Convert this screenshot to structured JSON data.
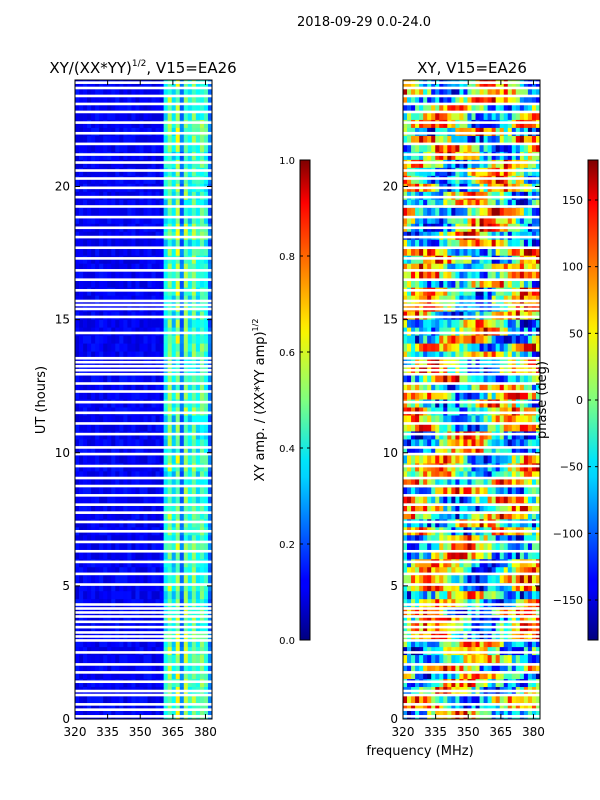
{
  "figure": {
    "suptitle": "2018-09-29 0.0-24.0",
    "xlabel": "frequency (MHz)"
  },
  "chart_data": [
    {
      "type": "heatmap",
      "title_main": "XY/(XX*YY)",
      "title_sup": "1/2",
      "title_tail": ", V15=EA26",
      "xlabel": "",
      "ylabel": "UT (hours)",
      "xlim": [
        320,
        383
      ],
      "ylim": [
        0,
        24
      ],
      "xticks": [
        320,
        335,
        350,
        365,
        380
      ],
      "yticks": [
        0,
        5,
        10,
        15,
        20
      ],
      "colorbar": {
        "label": "XY amp. / (XX*YY amp)",
        "label_sup": "1/2",
        "range": [
          0.0,
          1.0
        ],
        "ticks": [
          "0.0",
          "0.2",
          "0.4",
          "0.6",
          "0.8",
          "1.0"
        ],
        "colormap": "jet"
      },
      "pattern": "low amplitude (~0.1) below 360 MHz, bright vertical stripes (0.3–0.8) between 361 and 381 MHz"
    },
    {
      "type": "heatmap",
      "title_main": "XY, V15=EA26",
      "xlabel": "",
      "ylabel": "",
      "xlim": [
        320,
        383
      ],
      "ylim": [
        0,
        24
      ],
      "xticks": [
        320,
        335,
        350,
        365,
        380
      ],
      "yticks": [
        0,
        5,
        10,
        15,
        20
      ],
      "colorbar": {
        "label": "phase (deg)",
        "range": [
          -180,
          180
        ],
        "ticks": [
          "−150",
          "−100",
          "−50",
          "0",
          "50",
          "100",
          "150"
        ],
        "colormap": "jet"
      },
      "pattern": "noisy phase in all bands from −180 to 180 degrees"
    }
  ],
  "flagged_ut_hours": [
    0.1,
    0.35,
    0.55,
    0.9,
    1.05,
    1.4,
    1.75,
    2.05,
    2.5,
    2.95,
    3.1,
    3.25,
    3.45,
    3.65,
    3.85,
    4.0,
    4.15,
    4.3,
    5.05,
    5.45,
    5.9,
    6.3,
    6.65,
    7.05,
    7.4,
    7.75,
    8.05,
    8.4,
    8.75,
    9.05,
    9.5,
    9.95,
    10.2,
    10.7,
    11.1,
    11.5,
    11.9,
    12.3,
    12.6,
    12.95,
    13.1,
    13.25,
    13.4,
    13.55,
    14.5,
    15.1,
    15.4,
    15.55,
    15.7,
    16.1,
    16.5,
    16.85,
    17.3,
    17.7,
    18.1,
    18.45,
    18.85,
    19.25,
    19.6,
    19.95,
    20.3,
    20.6,
    20.9,
    21.2,
    21.6,
    22.0,
    22.4,
    22.8,
    23.1,
    23.4,
    23.7,
    23.9
  ]
}
